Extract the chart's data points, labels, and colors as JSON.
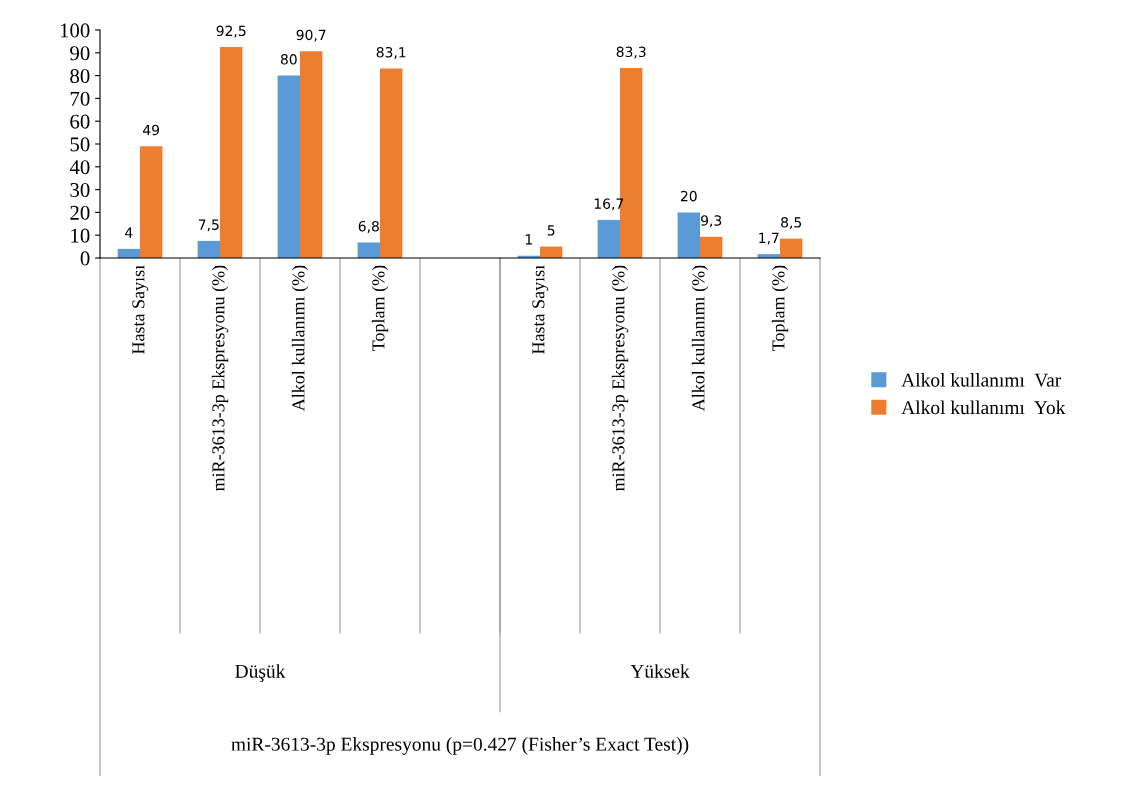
{
  "chart_data": {
    "type": "bar",
    "categories": [
      "Hasta Sayısı",
      "miR-3613-3p Ekspresyonu (%)",
      "Alkol kullanımı (%)",
      "Toplam (%)",
      null,
      "Hasta Sayısı",
      "miR-3613-3p Ekspresyonu (%)",
      "Alkol kullanımı (%)",
      "Toplam (%)"
    ],
    "series": [
      {
        "name": "Alkol kullanımı  Var",
        "color": "#5b9bd5",
        "values": [
          4,
          7.5,
          80,
          6.8,
          null,
          1,
          16.7,
          20,
          1.7
        ],
        "value_labels": [
          "4",
          "7,5",
          "80",
          "6,8",
          null,
          "1",
          "16,7",
          "20",
          "1,7"
        ]
      },
      {
        "name": "Alkol kullanımı  Yok",
        "color": "#ed7d31",
        "values": [
          49,
          92.5,
          90.7,
          83.1,
          null,
          5,
          83.3,
          9.3,
          8.5
        ],
        "value_labels": [
          "49",
          "92,5",
          "90,7",
          "83,1",
          null,
          "5",
          "83,3",
          "9,3",
          "8,5"
        ]
      }
    ],
    "annotations": [
      "Düşük",
      "Yüksek",
      "miR-3613-3p Ekspresyonu (p=0.427 (Fisher’s Exact Test))"
    ],
    "ylim": [
      0,
      100
    ],
    "yticks": [
      0,
      10,
      20,
      30,
      40,
      50,
      60,
      70,
      80,
      90,
      100
    ],
    "grid": false,
    "legend": "right"
  }
}
